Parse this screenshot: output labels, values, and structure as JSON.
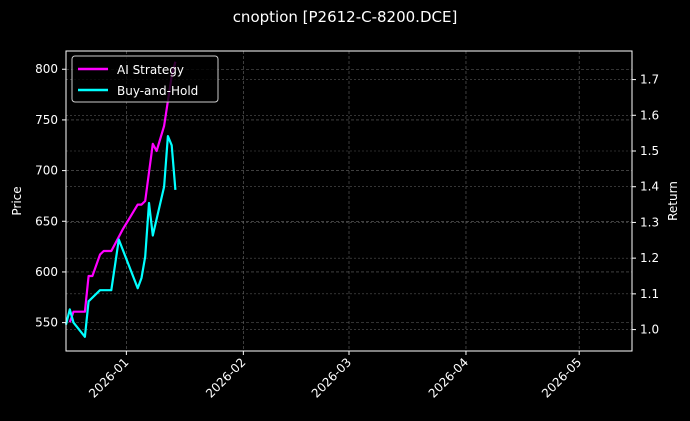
{
  "title": "cnoption [P2612-C-8200.DCE]",
  "colors": {
    "background": "#000000",
    "ai_strategy": "#ff00ff",
    "buy_and_hold": "#00ffff",
    "grid": "#555555",
    "axis": "#ffffff"
  },
  "legend": [
    {
      "label": "AI Strategy",
      "color": "#ff00ff"
    },
    {
      "label": "Buy-and-Hold",
      "color": "#00ffff"
    }
  ],
  "axes": {
    "left_label": "Price",
    "right_label": "Return",
    "left_ticks": [
      "550",
      "600",
      "650",
      "700",
      "750",
      "800"
    ],
    "right_ticks": [
      "1.0",
      "1.1",
      "1.2",
      "1.3",
      "1.4",
      "1.5",
      "1.6",
      "1.7"
    ],
    "x_ticks": [
      "2026-01",
      "2026-02",
      "2026-03",
      "2026-04",
      "2026-05"
    ]
  },
  "chart_data": {
    "type": "line",
    "title": "cnoption [P2612-C-8200.DCE]",
    "xlabel": "",
    "ylabel": "Price",
    "y2label": "Return",
    "ylim": [
      522,
      818
    ],
    "y2lim": [
      0.94,
      1.78
    ],
    "xlim": [
      "2025-12-16",
      "2026-05-15"
    ],
    "x_ticks": [
      "2026-01",
      "2026-02",
      "2026-03",
      "2026-04",
      "2026-05"
    ],
    "grid": true,
    "legend_position": "upper left",
    "series": [
      {
        "name": "AI Strategy",
        "axis": "right",
        "color": "#ff00ff",
        "x": [
          "2025-12-17",
          "2025-12-18",
          "2025-12-21",
          "2025-12-22",
          "2025-12-23",
          "2025-12-25",
          "2025-12-26",
          "2025-12-28",
          "2025-12-29",
          "2025-12-31",
          "2026-01-04",
          "2026-01-05",
          "2026-01-06",
          "2026-01-07",
          "2026-01-08",
          "2026-01-09",
          "2026-01-11",
          "2026-01-12",
          "2026-01-13",
          "2026-01-14"
        ],
        "values": [
          1.02,
          1.05,
          1.05,
          1.15,
          1.15,
          1.21,
          1.22,
          1.22,
          1.24,
          1.28,
          1.35,
          1.35,
          1.36,
          1.44,
          1.52,
          1.5,
          1.57,
          1.64,
          1.71,
          1.75
        ]
      },
      {
        "name": "Buy-and-Hold",
        "axis": "left",
        "color": "#00ffff",
        "x": [
          "2025-12-16",
          "2025-12-17",
          "2025-12-18",
          "2025-12-21",
          "2025-12-22",
          "2025-12-25",
          "2025-12-28",
          "2025-12-30",
          "2026-01-04",
          "2026-01-05",
          "2026-01-06",
          "2026-01-07",
          "2026-01-08",
          "2026-01-11",
          "2026-01-12",
          "2026-01-13",
          "2026-01-14"
        ],
        "values": [
          548,
          563,
          550,
          536,
          571,
          582,
          582,
          632,
          584,
          594,
          615,
          668,
          636,
          684,
          734,
          725,
          681
        ]
      }
    ]
  }
}
